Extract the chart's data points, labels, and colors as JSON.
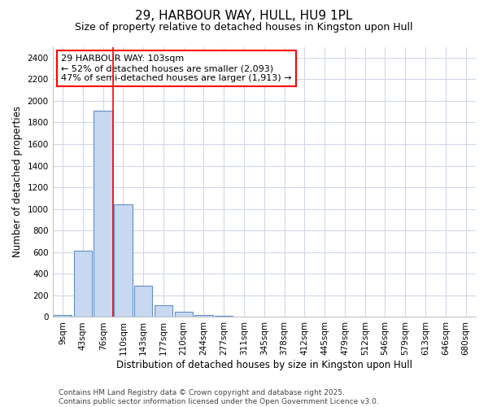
{
  "title": "29, HARBOUR WAY, HULL, HU9 1PL",
  "subtitle": "Size of property relative to detached houses in Kingston upon Hull",
  "xlabel": "Distribution of detached houses by size in Kingston upon Hull",
  "ylabel": "Number of detached properties",
  "bar_color": "#c8d8f0",
  "bar_edge_color": "#6090c8",
  "background_color": "#ffffff",
  "grid_color": "#d0d8e8",
  "categories": [
    "9sqm",
    "43sqm",
    "76sqm",
    "110sqm",
    "143sqm",
    "177sqm",
    "210sqm",
    "244sqm",
    "277sqm",
    "311sqm",
    "345sqm",
    "378sqm",
    "412sqm",
    "445sqm",
    "479sqm",
    "512sqm",
    "546sqm",
    "579sqm",
    "613sqm",
    "646sqm",
    "680sqm"
  ],
  "values": [
    20,
    615,
    1910,
    1045,
    290,
    110,
    47,
    20,
    8,
    0,
    0,
    0,
    0,
    0,
    0,
    0,
    0,
    0,
    0,
    0,
    0
  ],
  "red_line_x": 2.5,
  "annotation_text": "29 HARBOUR WAY: 103sqm\n← 52% of detached houses are smaller (2,093)\n47% of semi-detached houses are larger (1,913) →",
  "ylim": [
    0,
    2500
  ],
  "yticks": [
    0,
    200,
    400,
    600,
    800,
    1000,
    1200,
    1400,
    1600,
    1800,
    2000,
    2200,
    2400
  ],
  "footer_text": "Contains HM Land Registry data © Crown copyright and database right 2025.\nContains public sector information licensed under the Open Government Licence v3.0.",
  "title_fontsize": 11,
  "subtitle_fontsize": 9,
  "axis_label_fontsize": 8.5,
  "tick_fontsize": 7.5,
  "annotation_fontsize": 8,
  "footer_fontsize": 6.5
}
